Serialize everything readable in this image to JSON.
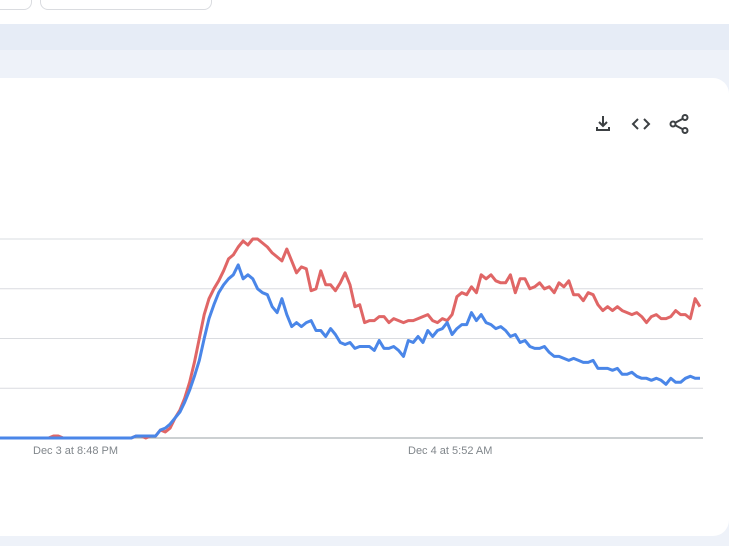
{
  "chart_data": {
    "type": "line",
    "title": "",
    "xlabel": "",
    "ylabel": "",
    "x_tick_labels": [
      {
        "label": "Dec 3 at 8:48 PM",
        "index": 0
      },
      {
        "label": "Dec 4 at 5:52 AM",
        "index": 1
      }
    ],
    "ylim": [
      0,
      100
    ],
    "grid": true,
    "series": [
      {
        "color": "#e06666",
        "values": [
          0,
          0,
          0,
          0,
          0,
          0,
          0,
          0,
          0,
          0,
          0,
          1,
          1,
          0,
          0,
          0,
          0,
          0,
          0,
          0,
          0,
          0,
          0,
          0,
          0,
          0,
          0,
          0,
          1,
          1,
          0,
          1,
          1,
          4,
          3,
          5,
          10,
          14,
          20,
          28,
          38,
          50,
          62,
          70,
          75,
          79,
          84,
          90,
          92,
          96,
          99,
          97,
          100,
          100,
          98,
          96,
          93,
          91,
          89,
          95,
          89,
          83,
          86,
          85,
          74,
          75,
          84,
          77,
          77,
          74,
          78,
          83,
          77,
          66,
          67,
          58,
          59,
          59,
          61,
          61,
          58,
          60,
          59,
          58,
          59,
          59,
          60,
          61,
          62,
          59,
          58,
          60,
          59,
          62,
          71,
          73,
          72,
          76,
          73,
          82,
          80,
          82,
          79,
          78,
          78,
          82,
          73,
          80,
          80,
          75,
          76,
          78,
          75,
          76,
          73,
          78,
          76,
          79,
          72,
          72,
          69,
          73,
          72,
          67,
          64,
          66,
          64,
          66,
          64,
          63,
          62,
          63,
          61,
          58,
          61,
          62,
          60,
          60,
          61,
          64,
          62,
          62,
          60,
          70,
          66
        ]
      },
      {
        "color": "#4a86e8",
        "values": [
          0,
          0,
          0,
          0,
          0,
          0,
          0,
          0,
          0,
          0,
          0,
          0,
          0,
          0,
          0,
          0,
          0,
          0,
          0,
          0,
          0,
          0,
          0,
          0,
          0,
          0,
          0,
          0,
          1,
          1,
          1,
          1,
          1,
          4,
          5,
          7,
          10,
          13,
          18,
          24,
          31,
          39,
          50,
          60,
          67,
          73,
          77,
          80,
          82,
          87,
          80,
          82,
          80,
          75,
          73,
          72,
          66,
          63,
          70,
          62,
          56,
          58,
          56,
          58,
          59,
          54,
          54,
          51,
          55,
          52,
          48,
          47,
          48,
          45,
          46,
          46,
          46,
          44,
          49,
          45,
          45,
          46,
          44,
          41,
          49,
          48,
          51,
          48,
          54,
          51,
          54,
          55,
          58,
          52,
          55,
          57,
          57,
          63,
          59,
          62,
          58,
          57,
          55,
          56,
          54,
          51,
          52,
          48,
          49,
          46,
          45,
          45,
          46,
          43,
          41,
          41,
          40,
          39,
          40,
          39,
          38,
          38,
          39,
          35,
          35,
          35,
          34,
          35,
          32,
          32,
          33,
          31,
          30,
          30,
          29,
          30,
          29,
          27,
          30,
          28,
          28,
          30,
          31,
          30,
          30
        ]
      }
    ]
  },
  "toolbar": {
    "download_icon": "download-icon",
    "embed_icon": "embed-code-icon",
    "share_icon": "share-icon"
  }
}
